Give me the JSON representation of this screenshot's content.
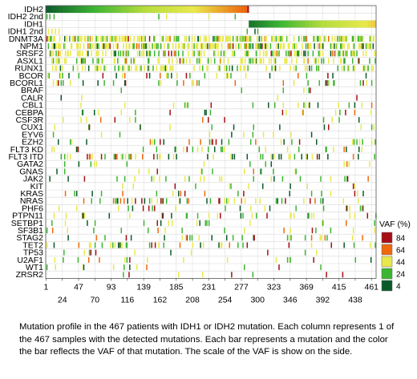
{
  "chart_data": {
    "type": "heatmap",
    "title": "",
    "xlabel": "",
    "ylabel": "",
    "n_samples": 467,
    "xlim": [
      1,
      467
    ],
    "genes": [
      "IDH2",
      "IDH2 2nd",
      "IDH1",
      "IDH1 2nd",
      "DNMT3A",
      "NPM1",
      "SRSF2",
      "ASXL1",
      "RUNX1",
      "BCOR",
      "BCORL1",
      "BRAF",
      "CALR",
      "CBL1",
      "CEBPA",
      "CSF3R",
      "CUX1",
      "EYV6",
      "EZH2",
      "FLT3 KD",
      "FLT3 ITD",
      "GATA2",
      "GNAS",
      "JAK2",
      "KIT",
      "KRAS",
      "NRAS",
      "PHF6",
      "PTPN11",
      "SETBP1",
      "SF3B1",
      "STAG2",
      "TET2",
      "TP53",
      "U2AF1",
      "WT1",
      "ZRSR2"
    ],
    "x_ticks_top": [
      1,
      47,
      93,
      139,
      185,
      231,
      277,
      323,
      369,
      415,
      461
    ],
    "x_ticks_bottom": [
      24,
      70,
      116,
      162,
      208,
      254,
      300,
      346,
      392,
      438
    ],
    "idh2_sample_range": [
      1,
      287
    ],
    "idh1_sample_range": [
      288,
      467
    ],
    "mutation_frequency": {
      "IDH2": 0.61,
      "IDH2 2nd": 0.01,
      "IDH1": 0.39,
      "IDH1 2nd": 0.01,
      "DNMT3A": 0.38,
      "NPM1": 0.4,
      "SRSF2": 0.3,
      "ASXL1": 0.2,
      "RUNX1": 0.16,
      "BCOR": 0.08,
      "BCORL1": 0.06,
      "BRAF": 0.02,
      "CALR": 0.01,
      "CBL1": 0.04,
      "CEBPA": 0.05,
      "CSF3R": 0.03,
      "CUX1": 0.04,
      "EYV6": 0.03,
      "EZH2": 0.04,
      "FLT3 KD": 0.05,
      "FLT3 ITD": 0.1,
      "GATA2": 0.04,
      "GNAS": 0.02,
      "JAK2": 0.05,
      "KIT": 0.02,
      "KRAS": 0.05,
      "NRAS": 0.1,
      "PHF6": 0.03,
      "PTPN11": 0.06,
      "SETBP1": 0.03,
      "SF3B1": 0.03,
      "STAG2": 0.08,
      "TET2": 0.09,
      "TP53": 0.03,
      "U2AF1": 0.04,
      "WT1": 0.02,
      "ZRSR2": 0.02
    },
    "grid": true,
    "legend": {
      "title": "VAF (%)",
      "position": "right",
      "entries": [
        {
          "label": "84",
          "color": "#a50f15"
        },
        {
          "label": "64",
          "color": "#ee6a0e"
        },
        {
          "label": "44",
          "color": "#e8e84a"
        },
        {
          "label": "24",
          "color": "#3cb531"
        },
        {
          "label": "4",
          "color": "#0a5a2a"
        }
      ]
    }
  },
  "colors": {
    "vaf_84": "#a50f15",
    "vaf_64": "#ee6a0e",
    "vaf_44": "#e8e84a",
    "vaf_24": "#3cb531",
    "vaf_4": "#0a5a2a",
    "grid": "#d9d9d9"
  },
  "caption": "Mutation profile in the 467 patients with IDH1 or IDH2 mutation.  Each column represents 1 of the 467 samples with the detected mutations.  Each bar represents a mutation and the color the bar reflects the VAF of that mutation.  The scale of the VAF is show on the side."
}
